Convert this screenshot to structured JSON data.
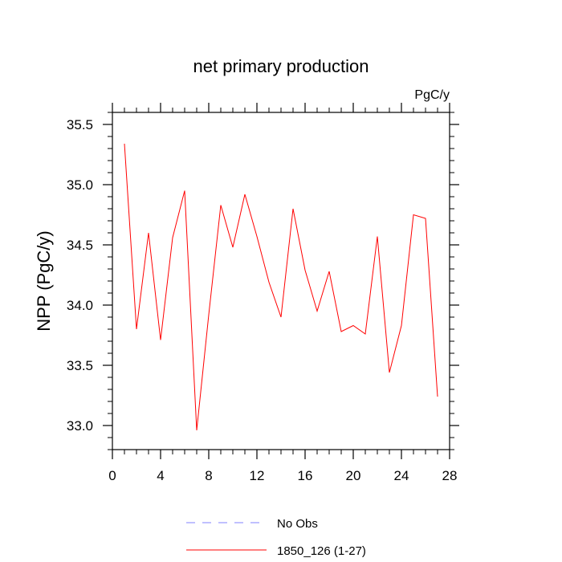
{
  "chart_data": {
    "type": "line",
    "title": "net primary production",
    "units_label": "PgC/y",
    "ylabel": "NPP  (PgC/y)",
    "xlabel": "",
    "xlim": [
      0,
      28
    ],
    "ylim": [
      32.8,
      35.6
    ],
    "x_ticks": [
      0,
      4,
      8,
      12,
      16,
      20,
      24,
      28
    ],
    "x_tick_labels": [
      "0",
      "4",
      "8",
      "12",
      "16",
      "20",
      "24",
      "28"
    ],
    "x_minor_step": 1,
    "y_ticks": [
      33.0,
      33.5,
      34.0,
      34.5,
      35.0,
      35.5
    ],
    "y_tick_labels": [
      "33.0",
      "33.5",
      "34.0",
      "34.5",
      "35.0",
      "35.5"
    ],
    "y_minor_step": 0.1,
    "grid": false,
    "legend_position": "bottom",
    "series": [
      {
        "name": "No Obs",
        "color": "#8080ff",
        "dash": "dashed",
        "x": [],
        "y": []
      },
      {
        "name": "1850_126 (1-27)",
        "color": "#ff0000",
        "dash": "solid",
        "x": [
          1,
          2,
          3,
          4,
          5,
          6,
          7,
          8,
          9,
          10,
          11,
          12,
          13,
          14,
          15,
          16,
          17,
          18,
          19,
          20,
          21,
          22,
          23,
          24,
          25,
          26,
          27
        ],
        "y": [
          35.34,
          33.8,
          34.6,
          33.71,
          34.56,
          34.95,
          32.96,
          33.92,
          34.83,
          34.48,
          34.92,
          34.57,
          34.19,
          33.9,
          34.8,
          34.29,
          33.95,
          34.28,
          33.78,
          33.83,
          33.76,
          34.57,
          33.44,
          33.83,
          34.75,
          34.72,
          33.24
        ]
      }
    ]
  }
}
